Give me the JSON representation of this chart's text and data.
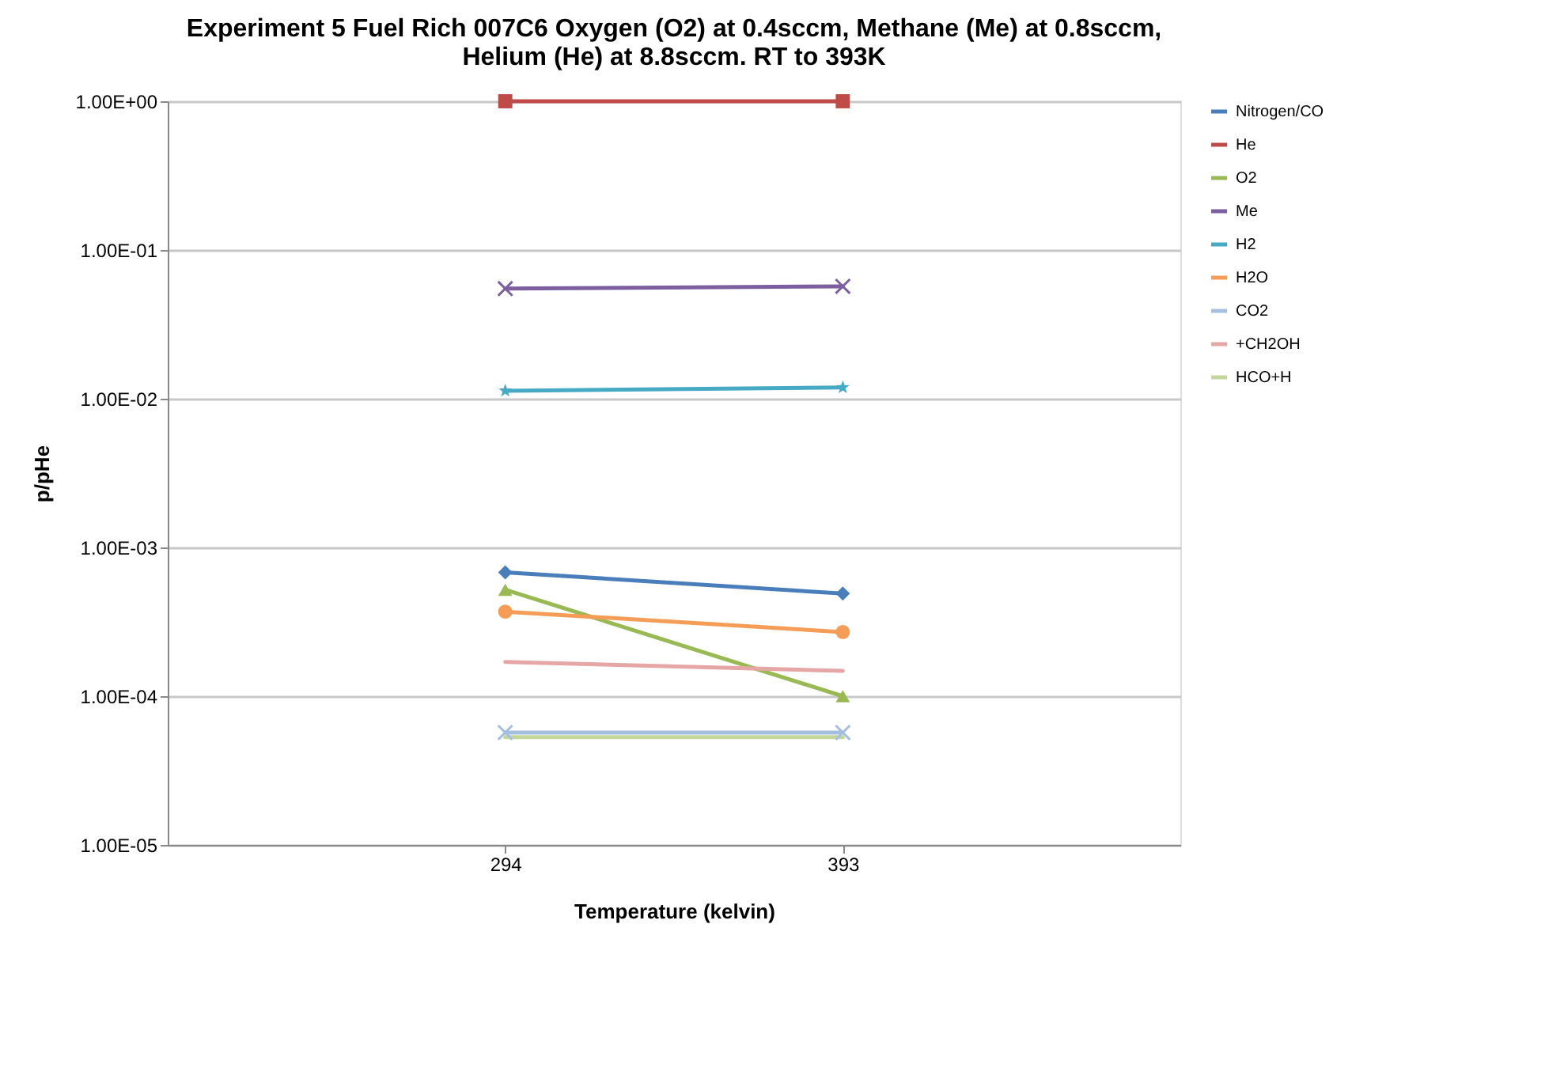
{
  "chart_data": {
    "type": "line",
    "title": "Experiment 5 Fuel Rich 007C6 Oxygen (O2) at 0.4sccm, Methane (Me) at 0.8sccm, Helium (He) at 8.8sccm. RT to 393K",
    "xlabel": "Temperature (kelvin)",
    "ylabel": "p/pHe",
    "categories": [
      "294",
      "393"
    ],
    "log": "y",
    "grid": "y",
    "legend": "right",
    "ylim": [
      1e-05,
      1
    ],
    "yticks": [
      {
        "value": 1e-05,
        "label": "1.00E-05"
      },
      {
        "value": 0.0001,
        "label": "1.00E-04"
      },
      {
        "value": 0.001,
        "label": "1.00E-03"
      },
      {
        "value": 0.01,
        "label": "1.00E-02"
      },
      {
        "value": 0.1,
        "label": "1.00E-01"
      },
      {
        "value": 1,
        "label": "1.00E+00"
      }
    ],
    "series": [
      {
        "name": "Nitrogen/CO",
        "color": "#4a7ebb",
        "marker": "diamond",
        "values": [
          0.00068,
          0.00049
        ]
      },
      {
        "name": "He",
        "color": "#be4b48",
        "marker": "square",
        "values": [
          1,
          1
        ]
      },
      {
        "name": "O2",
        "color": "#98b954",
        "marker": "triangle",
        "values": [
          0.00052,
          0.0001
        ]
      },
      {
        "name": "Me",
        "color": "#7d5fa0",
        "marker": "cross",
        "values": [
          0.055,
          0.057
        ]
      },
      {
        "name": "H2",
        "color": "#46aac5",
        "marker": "star",
        "values": [
          0.0113,
          0.0119
        ]
      },
      {
        "name": "H2O",
        "color": "#f59d56",
        "marker": "circle",
        "values": [
          0.00037,
          0.00027
        ]
      },
      {
        "name": "CO2",
        "color": "#a5bfe0",
        "marker": "cross",
        "values": [
          5.7e-05,
          5.7e-05
        ]
      },
      {
        "name": "+CH2OH",
        "color": "#e6a6a5",
        "marker": "none",
        "values": [
          0.00017,
          0.000148
        ]
      },
      {
        "name": "HCO+H",
        "color": "#c3d69b",
        "marker": "none",
        "values": [
          5.3e-05,
          5.3e-05
        ]
      }
    ]
  }
}
